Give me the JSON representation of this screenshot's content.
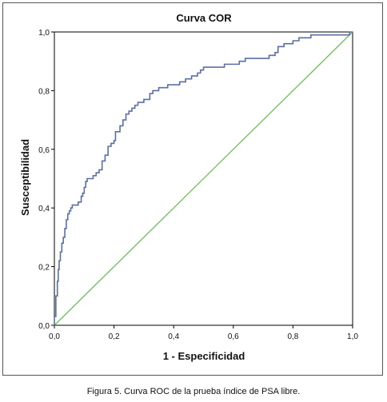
{
  "caption": "Figura 5. Curva ROC de la prueba índice de PSA libre.",
  "colors": {
    "roc_line": "#5b6fa6",
    "diagonal": "#6cbf5a",
    "axis": "#000000"
  },
  "chart_data": {
    "type": "line",
    "title": "Curva COR",
    "xlabel": "1 - Especificidad",
    "ylabel": "Susceptibilidad",
    "xlim": [
      0.0,
      1.0
    ],
    "ylim": [
      0.0,
      1.0
    ],
    "x_ticks": [
      "0,0",
      "0,2",
      "0,4",
      "0,6",
      "0,8",
      "1,0"
    ],
    "y_ticks": [
      "0,0",
      "0,2",
      "0,4",
      "0,6",
      "0,8",
      "1,0"
    ],
    "grid": false,
    "series": [
      {
        "values_x": [
          0.0,
          0.0,
          0.005,
          0.005,
          0.01,
          0.01,
          0.013,
          0.013,
          0.016,
          0.016,
          0.02,
          0.02,
          0.025,
          0.025,
          0.03,
          0.03,
          0.035,
          0.035,
          0.04,
          0.04,
          0.045,
          0.045,
          0.05,
          0.05,
          0.055,
          0.055,
          0.06,
          0.06,
          0.08,
          0.08,
          0.09,
          0.09,
          0.095,
          0.095,
          0.1,
          0.1,
          0.105,
          0.105,
          0.11,
          0.11,
          0.13,
          0.13,
          0.14,
          0.14,
          0.15,
          0.15,
          0.16,
          0.16,
          0.17,
          0.17,
          0.18,
          0.18,
          0.19,
          0.19,
          0.2,
          0.2,
          0.205,
          0.205,
          0.22,
          0.22,
          0.23,
          0.23,
          0.24,
          0.24,
          0.25,
          0.25,
          0.26,
          0.26,
          0.27,
          0.27,
          0.28,
          0.28,
          0.3,
          0.3,
          0.32,
          0.32,
          0.33,
          0.33,
          0.34,
          0.34,
          0.35,
          0.35,
          0.38,
          0.38,
          0.4,
          0.4,
          0.42,
          0.42,
          0.44,
          0.44,
          0.46,
          0.46,
          0.48,
          0.48,
          0.49,
          0.49,
          0.5,
          0.5,
          0.51,
          0.51,
          0.57,
          0.57,
          0.59,
          0.59,
          0.62,
          0.62,
          0.64,
          0.64,
          0.7,
          0.7,
          0.72,
          0.72,
          0.74,
          0.74,
          0.75,
          0.75,
          0.77,
          0.77,
          0.8,
          0.8,
          0.82,
          0.82,
          0.86,
          0.86,
          0.96,
          0.96,
          0.99,
          0.99,
          1.0
        ],
        "values_y": [
          0.0,
          0.03,
          0.03,
          0.1,
          0.1,
          0.15,
          0.15,
          0.19,
          0.19,
          0.22,
          0.22,
          0.25,
          0.25,
          0.28,
          0.28,
          0.3,
          0.3,
          0.33,
          0.33,
          0.36,
          0.36,
          0.38,
          0.38,
          0.39,
          0.39,
          0.4,
          0.4,
          0.41,
          0.41,
          0.42,
          0.42,
          0.44,
          0.44,
          0.45,
          0.45,
          0.47,
          0.47,
          0.49,
          0.49,
          0.5,
          0.5,
          0.51,
          0.51,
          0.52,
          0.52,
          0.53,
          0.53,
          0.56,
          0.56,
          0.58,
          0.58,
          0.61,
          0.61,
          0.62,
          0.62,
          0.63,
          0.63,
          0.66,
          0.66,
          0.68,
          0.68,
          0.7,
          0.7,
          0.72,
          0.72,
          0.73,
          0.73,
          0.74,
          0.74,
          0.75,
          0.75,
          0.76,
          0.76,
          0.77,
          0.77,
          0.79,
          0.79,
          0.8,
          0.8,
          0.8,
          0.8,
          0.81,
          0.81,
          0.82,
          0.82,
          0.82,
          0.82,
          0.83,
          0.83,
          0.84,
          0.84,
          0.85,
          0.85,
          0.86,
          0.86,
          0.87,
          0.87,
          0.88,
          0.88,
          0.88,
          0.88,
          0.89,
          0.89,
          0.89,
          0.89,
          0.9,
          0.9,
          0.91,
          0.91,
          0.91,
          0.91,
          0.92,
          0.92,
          0.93,
          0.93,
          0.95,
          0.95,
          0.96,
          0.96,
          0.97,
          0.97,
          0.98,
          0.98,
          0.99,
          0.99,
          0.99,
          0.99,
          1.0,
          1.0
        ]
      },
      {
        "values_x": [
          0.0,
          1.0
        ],
        "values_y": [
          0.0,
          1.0
        ]
      }
    ]
  }
}
